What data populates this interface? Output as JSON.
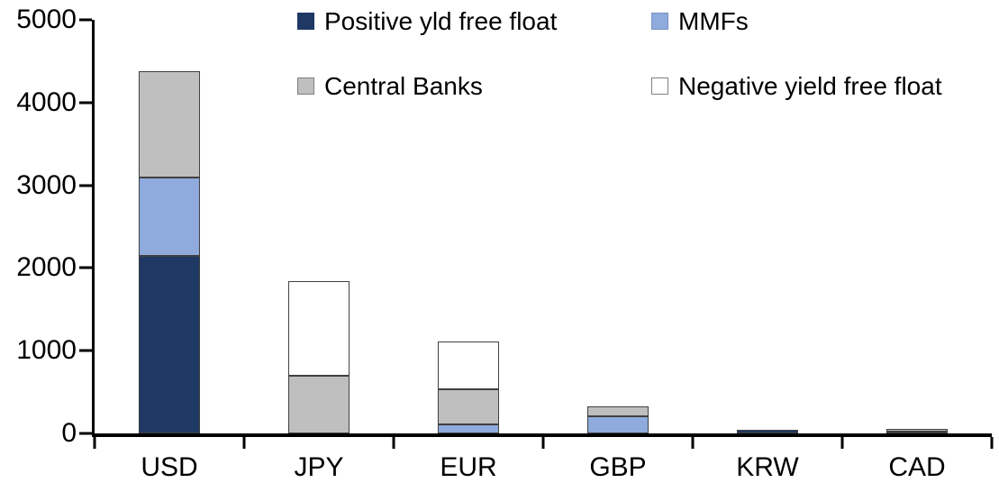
{
  "chart_data": {
    "type": "bar",
    "stacked": true,
    "title": "",
    "xlabel": "",
    "ylabel": "",
    "categories": [
      "USD",
      "JPY",
      "EUR",
      "GBP",
      "KRW",
      "CAD"
    ],
    "series": [
      {
        "name": "Positive yld free float",
        "color": "#1F3864",
        "swatch_border": "#1F3864",
        "values": [
          2150,
          0,
          0,
          0,
          40,
          25
        ]
      },
      {
        "name": "MMFs",
        "color": "#8FAADC",
        "swatch_border": "#7A93C3",
        "values": [
          940,
          0,
          110,
          210,
          0,
          0
        ]
      },
      {
        "name": "Central Banks",
        "color": "#BFBFBF",
        "swatch_border": "#7F7F7F",
        "values": [
          1290,
          700,
          425,
          120,
          0,
          30
        ]
      },
      {
        "name": "Negative yield free float",
        "color": "#FFFFFF",
        "swatch_border": "#7F7F7F",
        "values": [
          0,
          1140,
          575,
          0,
          0,
          0
        ]
      }
    ],
    "ylim": [
      0,
      5000
    ],
    "yticks": [
      0,
      1000,
      2000,
      3000,
      4000,
      5000
    ],
    "grid": false,
    "legend_position": "top-two-column",
    "axis_color": "#000000",
    "text_color": "#000000"
  }
}
